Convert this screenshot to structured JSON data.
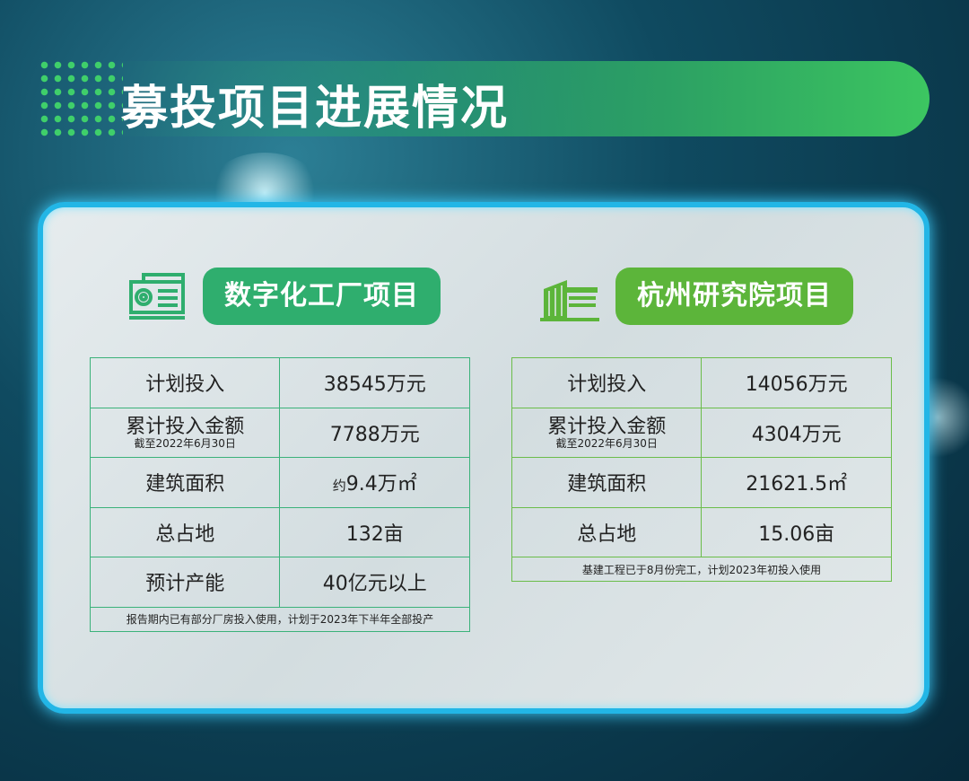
{
  "title": "募投项目进展情况",
  "colors": {
    "left_accent": "#2fae6e",
    "right_accent": "#5cb53a",
    "border": "#22b6e6"
  },
  "projects": [
    {
      "name": "数字化工厂项目",
      "icon": "factory-monitor-icon",
      "rows": [
        {
          "label": "计划投入",
          "value": "38545万元"
        },
        {
          "label": "累计投入金额",
          "sub": "截至2022年6月30日",
          "value": "7788万元"
        },
        {
          "label": "建筑面积",
          "value_prefix": "约",
          "value": "9.4万㎡"
        },
        {
          "label": "总占地",
          "value": "132亩"
        },
        {
          "label": "预计产能",
          "value": "40亿元以上"
        }
      ],
      "note": "报告期内已有部分厂房投入使用，计划于2023年下半年全部投产"
    },
    {
      "name": "杭州研究院项目",
      "icon": "building-icon",
      "rows": [
        {
          "label": "计划投入",
          "value": "14056万元"
        },
        {
          "label": "累计投入金额",
          "sub": "截至2022年6月30日",
          "value": "4304万元"
        },
        {
          "label": "建筑面积",
          "value": "21621.5㎡"
        },
        {
          "label": "总占地",
          "value": "15.06亩"
        }
      ],
      "note": "基建工程已于8月份完工，计划2023年初投入使用"
    }
  ]
}
